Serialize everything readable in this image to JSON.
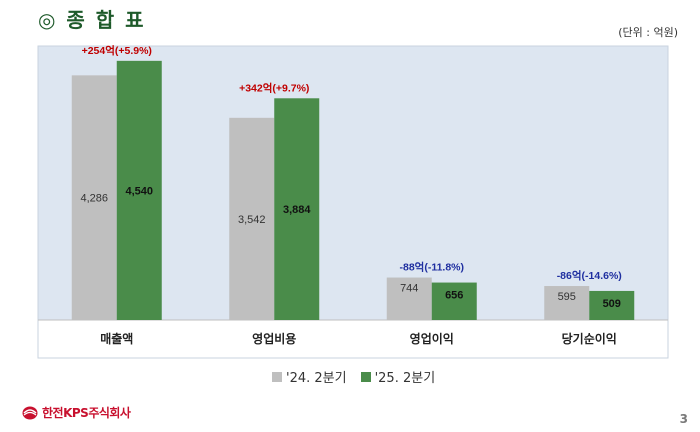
{
  "page": {
    "title": "◎ 종 합 표",
    "unit": "(단위 : 억원)",
    "page_number": "3",
    "company_name": "한전KPS주식회사"
  },
  "colors": {
    "prev": "#bfbfbf",
    "curr": "#4a8c4a",
    "plot_bg": "#dde6f1",
    "positive_change": "#c00000",
    "negative_change": "#1f2fa0"
  },
  "chart_data": {
    "type": "bar",
    "categories": [
      "매출액",
      "영업비용",
      "영업이익",
      "당기순이익"
    ],
    "series": [
      {
        "name": "'24. 2분기",
        "values": [
          4286,
          3542,
          744,
          595
        ],
        "labels": [
          "4,286",
          "3,542",
          "744",
          "595"
        ]
      },
      {
        "name": "'25. 2분기",
        "values": [
          4540,
          3884,
          656,
          509
        ],
        "labels": [
          "4,540",
          "3,884",
          "656",
          "509"
        ]
      }
    ],
    "change_labels": [
      "+254억(+5.9%)",
      "+342억(+9.7%)",
      "-88억(-11.8%)",
      "-86억(-14.6%)"
    ],
    "change_direction": [
      "up",
      "up",
      "down",
      "down"
    ],
    "ylim": [
      0,
      4800
    ],
    "grid": false,
    "legend_position": "bottom"
  }
}
